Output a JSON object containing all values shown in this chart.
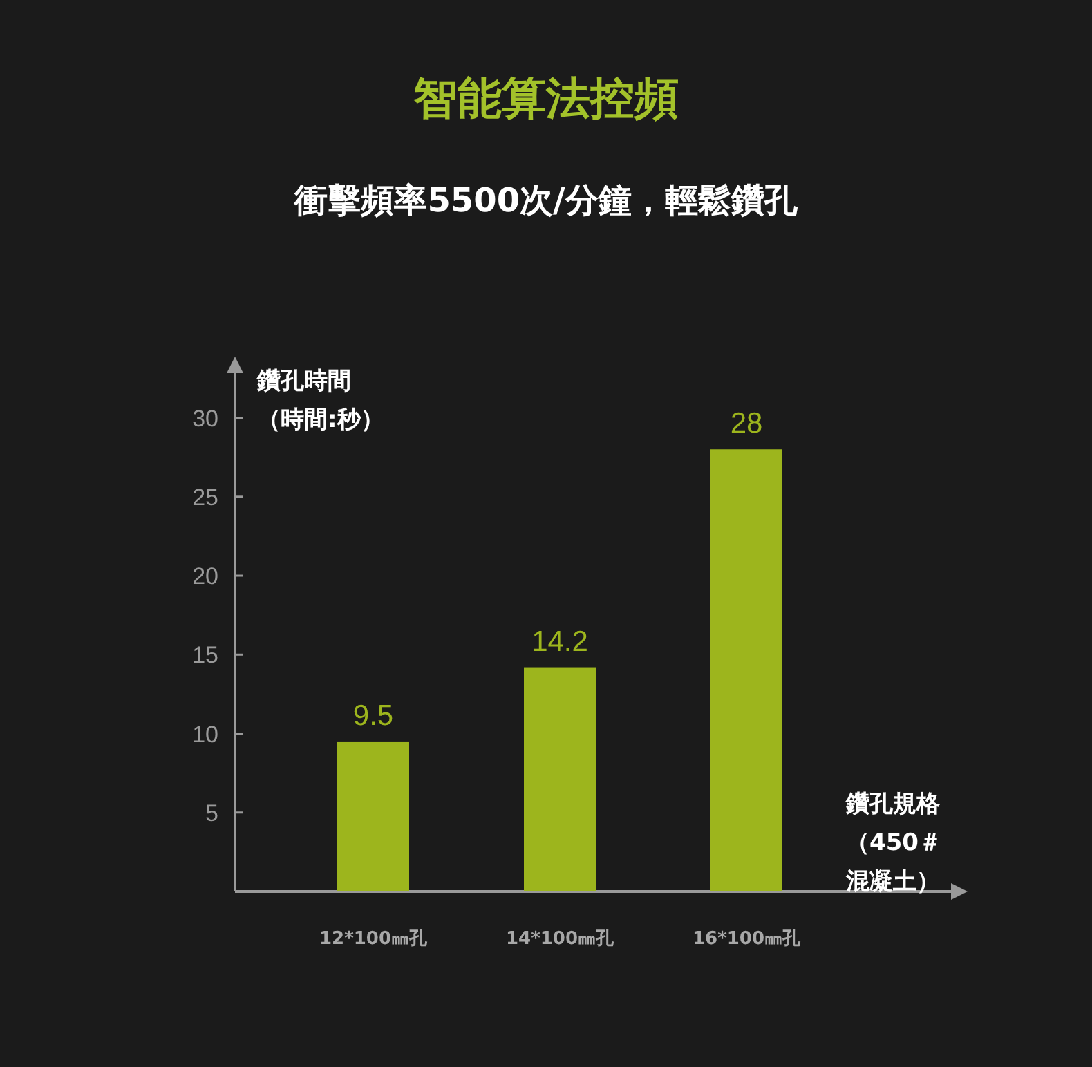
{
  "chart_data": {
    "type": "bar",
    "title": "智能算法控頻",
    "subtitle": "衝擊頻率5500次/分鐘，輕鬆鑽孔",
    "ylabel": "鑽孔時間（時間:秒）",
    "xlabel": "鑽孔規格（450＃混凝土）",
    "categories": [
      "12*100㎜孔",
      "14*100㎜孔",
      "16*100㎜孔"
    ],
    "values": [
      9.5,
      14.2,
      28
    ],
    "color": "#9db51d",
    "ylim": [
      0,
      33
    ],
    "yticks": [
      5,
      10,
      15,
      20,
      25,
      30
    ],
    "data_labels": true,
    "grid": false
  }
}
